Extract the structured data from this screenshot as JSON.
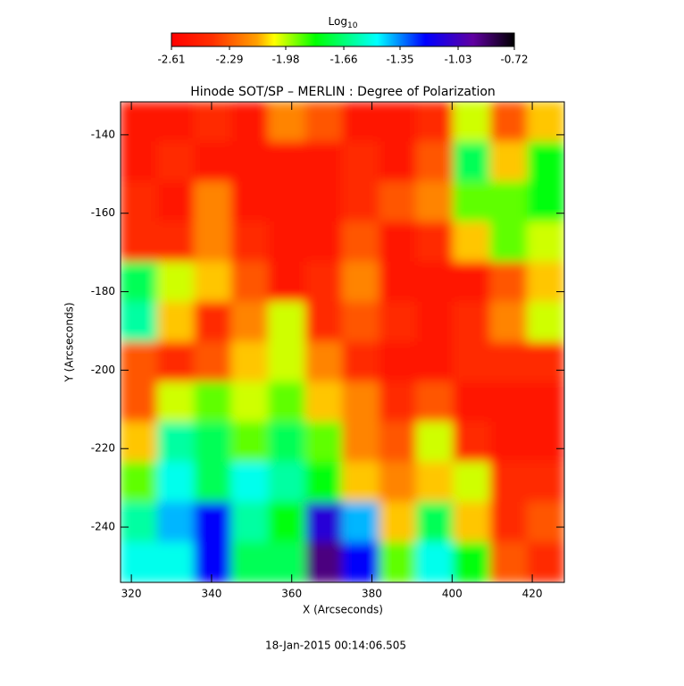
{
  "chart_data": {
    "type": "heatmap",
    "title": "Hinode SOT/SP – MERLIN : Degree of Polarization",
    "xlabel": "X (Arcseconds)",
    "ylabel": "Y (Arcseconds)",
    "footer": "18-Jan-2015 00:14:06.505",
    "colorbar_label": {
      "text": "Log",
      "subscript": "10"
    },
    "clim": [
      -2.61,
      -0.72
    ],
    "cticks": [
      -2.61,
      -2.29,
      -1.98,
      -1.66,
      -1.35,
      -1.03,
      -0.72
    ],
    "colorscale": [
      [
        0,
        "#ff0000"
      ],
      [
        0.12,
        "#ff3000"
      ],
      [
        0.25,
        "#ffa000"
      ],
      [
        0.3,
        "#ffff00"
      ],
      [
        0.42,
        "#00ff00"
      ],
      [
        0.6,
        "#00ffff"
      ],
      [
        0.74,
        "#0000ff"
      ],
      [
        0.88,
        "#6000a0"
      ],
      [
        1,
        "#000000"
      ]
    ],
    "xlim": [
      317.3,
      428
    ],
    "ylim": [
      -254.1,
      -131.6
    ],
    "xticks": [
      320,
      340,
      360,
      380,
      400,
      420
    ],
    "yticks": [
      -140,
      -160,
      -180,
      -200,
      -220,
      -240
    ],
    "z": [
      [
        -2.5,
        -2.5,
        -2.4,
        -2.5,
        -2.2,
        -2.3,
        -2.5,
        -2.5,
        -2.4,
        -2.0,
        -2.3,
        -2.1
      ],
      [
        -2.5,
        -2.4,
        -2.5,
        -2.5,
        -2.5,
        -2.5,
        -2.4,
        -2.5,
        -2.3,
        -1.7,
        -2.1,
        -1.8
      ],
      [
        -2.4,
        -2.5,
        -2.2,
        -2.5,
        -2.5,
        -2.5,
        -2.4,
        -2.3,
        -2.2,
        -1.9,
        -1.9,
        -1.8
      ],
      [
        -2.4,
        -2.4,
        -2.2,
        -2.4,
        -2.5,
        -2.5,
        -2.3,
        -2.5,
        -2.4,
        -2.1,
        -1.9,
        -2.0
      ],
      [
        -1.7,
        -2.0,
        -2.1,
        -2.3,
        -2.5,
        -2.4,
        -2.2,
        -2.5,
        -2.5,
        -2.5,
        -2.3,
        -2.1
      ],
      [
        -1.6,
        -2.1,
        -2.4,
        -2.2,
        -2.0,
        -2.4,
        -2.3,
        -2.4,
        -2.5,
        -2.4,
        -2.2,
        -2.0
      ],
      [
        -2.3,
        -2.4,
        -2.3,
        -2.1,
        -2.0,
        -2.2,
        -2.4,
        -2.5,
        -2.5,
        -2.4,
        -2.4,
        -2.4
      ],
      [
        -2.3,
        -2.0,
        -1.9,
        -2.0,
        -1.9,
        -2.1,
        -2.2,
        -2.4,
        -2.3,
        -2.5,
        -2.5,
        -2.5
      ],
      [
        -2.1,
        -1.6,
        -1.7,
        -1.9,
        -1.7,
        -1.9,
        -2.2,
        -2.3,
        -2.0,
        -2.4,
        -2.5,
        -2.5
      ],
      [
        -1.9,
        -1.5,
        -1.7,
        -1.5,
        -1.6,
        -1.8,
        -2.1,
        -2.2,
        -2.1,
        -2.0,
        -2.4,
        -2.4
      ],
      [
        -1.6,
        -1.4,
        -1.2,
        -1.6,
        -1.8,
        -1.1,
        -1.4,
        -2.1,
        -1.7,
        -2.1,
        -2.4,
        -2.3
      ],
      [
        -1.5,
        -1.5,
        -1.2,
        -1.7,
        -1.7,
        -0.9,
        -1.2,
        -1.9,
        -1.5,
        -1.8,
        -2.3,
        -2.4
      ]
    ]
  }
}
